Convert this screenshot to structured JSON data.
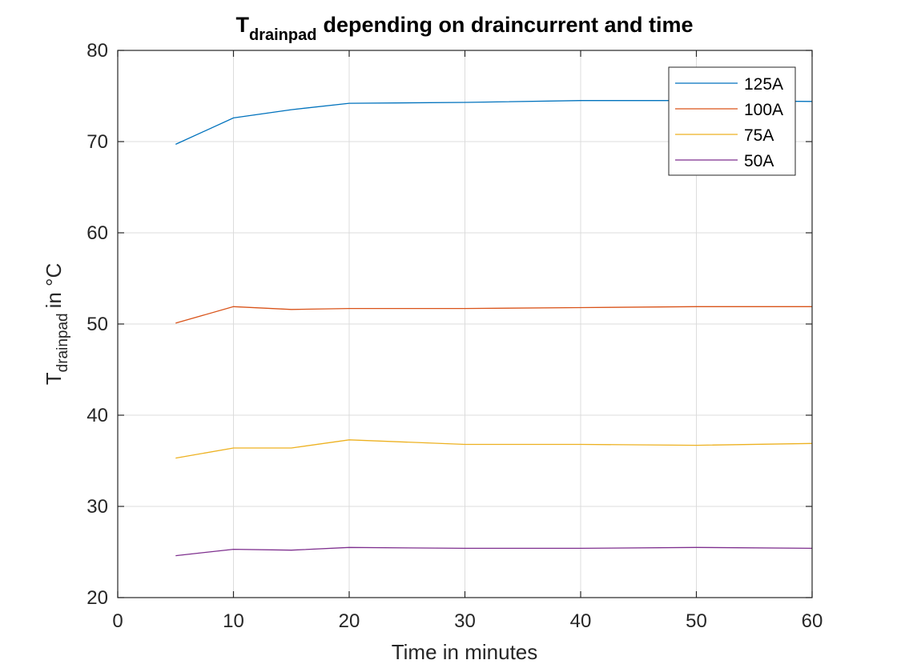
{
  "chart_data": {
    "type": "line",
    "title": {
      "base": "T",
      "sub": "drainpad",
      "rest": "depending on draincurrent and time"
    },
    "xlabel": "Time in minutes",
    "ylabel": {
      "base": "T",
      "sub": "drainpad",
      "rest": "in °C"
    },
    "xlim": [
      0,
      60
    ],
    "ylim": [
      20,
      80
    ],
    "xticks": [
      0,
      10,
      20,
      30,
      40,
      50,
      60
    ],
    "yticks": [
      20,
      30,
      40,
      50,
      60,
      70,
      80
    ],
    "grid": true,
    "legend_position": "top-right",
    "x": [
      5,
      10,
      15,
      20,
      30,
      40,
      50,
      60
    ],
    "series": [
      {
        "name": "125A",
        "color": "#0072BD",
        "values": [
          69.7,
          72.6,
          73.5,
          74.2,
          74.3,
          74.5,
          74.5,
          74.4
        ]
      },
      {
        "name": "100A",
        "color": "#D95319",
        "values": [
          50.1,
          51.9,
          51.6,
          51.7,
          51.7,
          51.8,
          51.9,
          51.9
        ]
      },
      {
        "name": "75A",
        "color": "#EDB120",
        "values": [
          35.3,
          36.4,
          36.4,
          37.3,
          36.8,
          36.8,
          36.7,
          36.9
        ]
      },
      {
        "name": "50A",
        "color": "#7E2F8E",
        "values": [
          24.6,
          25.3,
          25.2,
          25.5,
          25.4,
          25.4,
          25.5,
          25.4
        ]
      }
    ]
  }
}
